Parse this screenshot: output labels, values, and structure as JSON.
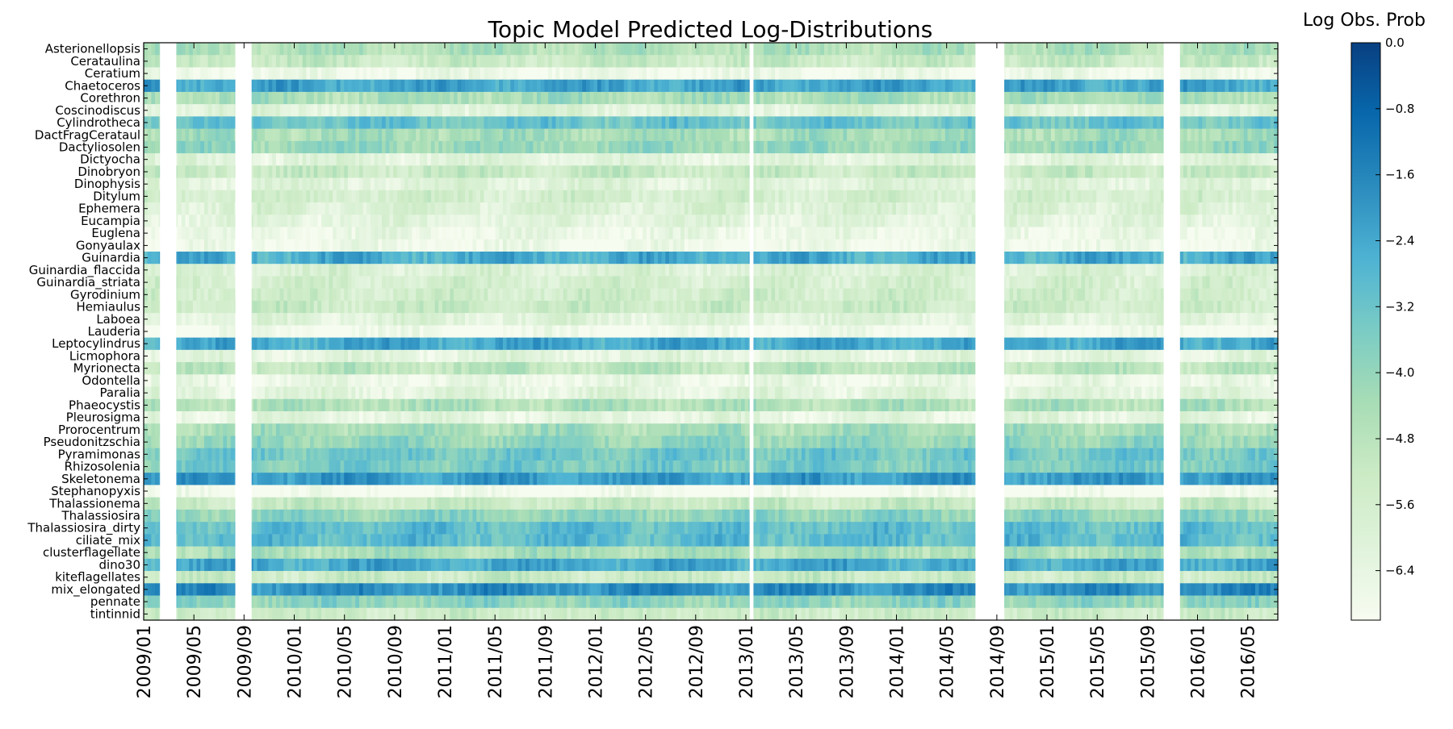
{
  "chart_data": {
    "type": "heatmap",
    "title": "Topic Model Predicted Log-Distributions",
    "xlabel": "",
    "ylabel": "",
    "rows": [
      {
        "label": "Asterionellopsis",
        "mean": -4.6
      },
      {
        "label": "Cerataulina",
        "mean": -5.2
      },
      {
        "label": "Ceratium",
        "mean": -6.7
      },
      {
        "label": "Chaetoceros",
        "mean": -2.3
      },
      {
        "label": "Corethron",
        "mean": -4.4
      },
      {
        "label": "Coscinodiscus",
        "mean": -6.0
      },
      {
        "label": "Cylindrotheca",
        "mean": -3.2
      },
      {
        "label": "DactFragCerataul",
        "mean": -4.4
      },
      {
        "label": "Dactyliosolen",
        "mean": -4.1
      },
      {
        "label": "Dictyocha",
        "mean": -6.2
      },
      {
        "label": "Dinobryon",
        "mean": -5.2
      },
      {
        "label": "Dinophysis",
        "mean": -6.1
      },
      {
        "label": "Ditylum",
        "mean": -5.6
      },
      {
        "label": "Ephemera",
        "mean": -5.9
      },
      {
        "label": "Eucampia",
        "mean": -6.2
      },
      {
        "label": "Euglena",
        "mean": -6.6
      },
      {
        "label": "Gonyaulax",
        "mean": -6.8
      },
      {
        "label": "Guinardia",
        "mean": -2.5
      },
      {
        "label": "Guinardia_flaccida",
        "mean": -5.9
      },
      {
        "label": "Guinardia_striata",
        "mean": -5.7
      },
      {
        "label": "Gyrodinium",
        "mean": -5.5
      },
      {
        "label": "Hemiaulus",
        "mean": -5.3
      },
      {
        "label": "Laboea",
        "mean": -6.1
      },
      {
        "label": "Lauderia",
        "mean": -6.9
      },
      {
        "label": "Leptocylindrus",
        "mean": -2.4
      },
      {
        "label": "Licmophora",
        "mean": -6.3
      },
      {
        "label": "Myrionecta",
        "mean": -4.9
      },
      {
        "label": "Odontella",
        "mean": -6.6
      },
      {
        "label": "Paralia",
        "mean": -6.2
      },
      {
        "label": "Phaeocystis",
        "mean": -4.6
      },
      {
        "label": "Pleurosigma",
        "mean": -6.3
      },
      {
        "label": "Prorocentrum",
        "mean": -4.4
      },
      {
        "label": "Pseudonitzschia",
        "mean": -4.0
      },
      {
        "label": "Pyramimonas",
        "mean": -3.3
      },
      {
        "label": "Rhizosolenia",
        "mean": -3.5
      },
      {
        "label": "Skeletonema",
        "mean": -2.1
      },
      {
        "label": "Stephanopyxis",
        "mean": -7.0
      },
      {
        "label": "Thalassionema",
        "mean": -5.2
      },
      {
        "label": "Thalassiosira",
        "mean": -3.9
      },
      {
        "label": "Thalassiosira_dirty",
        "mean": -3.0
      },
      {
        "label": "ciliate_mix",
        "mean": -2.9
      },
      {
        "label": "clusterflagellate",
        "mean": -4.5
      },
      {
        "label": "dino30",
        "mean": -2.4
      },
      {
        "label": "kiteflagellates",
        "mean": -5.3
      },
      {
        "label": "mix_elongated",
        "mean": -1.8
      },
      {
        "label": "pennate",
        "mean": -3.9
      },
      {
        "label": "tintinnid",
        "mean": -5.4
      }
    ],
    "x_tick_labels": [
      "2009/01",
      "2009/05",
      "2009/09",
      "2010/01",
      "2010/05",
      "2010/09",
      "2011/01",
      "2011/05",
      "2011/09",
      "2012/01",
      "2012/05",
      "2012/09",
      "2013/01",
      "2013/05",
      "2013/09",
      "2014/01",
      "2014/05",
      "2014/09",
      "2015/01",
      "2015/05",
      "2015/09",
      "2016/01",
      "2016/05"
    ],
    "x_range": [
      "2009/01",
      "2016/07"
    ],
    "gaps": [
      [
        "2009/02",
        "2009/03"
      ],
      [
        "2009/08",
        "2009/09"
      ],
      [
        "2013/01",
        "2013/01"
      ],
      [
        "2014/07",
        "2014/09"
      ],
      [
        "2015/10",
        "2015/11"
      ]
    ],
    "colorbar": {
      "title": "Log Obs. Prob",
      "range": [
        -7.0,
        0.0
      ],
      "ticks": [
        "0.0",
        "−0.8",
        "−1.6",
        "−2.4",
        "−3.2",
        "−4.0",
        "−4.8",
        "−5.6",
        "−6.4"
      ],
      "colors": [
        "#f7fcf0",
        "#e0f3db",
        "#ccebc5",
        "#a8ddb5",
        "#7bccc4",
        "#4eb3d3",
        "#2b8cbe",
        "#0868ac",
        "#084081"
      ]
    }
  }
}
